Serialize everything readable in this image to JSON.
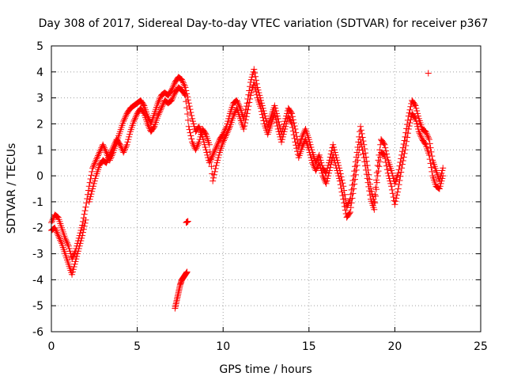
{
  "chart_data": {
    "type": "scatter",
    "title": "Day 308 of 2017, Sidereal Day-to-day VTEC variation (SDTVAR) for receiver p367",
    "xlabel": "GPS time / hours",
    "ylabel": "SDTVAR / TECUs",
    "xlim": [
      0,
      25
    ],
    "ylim": [
      -6,
      5
    ],
    "xticks": [
      "0",
      "5",
      "10",
      "15",
      "20",
      "25"
    ],
    "yticks": [
      "-6",
      "-5",
      "-4",
      "-3",
      "-2",
      "-1",
      "0",
      "1",
      "2",
      "3",
      "4",
      "5"
    ],
    "grid": true,
    "legend": "none",
    "marker": "+",
    "color": "#ff0000",
    "series": [
      {
        "name": "main-trace",
        "points": [
          [
            0.0,
            -1.8
          ],
          [
            0.2,
            -1.5
          ],
          [
            0.4,
            -1.6
          ],
          [
            0.6,
            -2.0
          ],
          [
            0.8,
            -2.4
          ],
          [
            1.0,
            -2.7
          ],
          [
            1.2,
            -3.2
          ],
          [
            1.4,
            -2.9
          ],
          [
            1.6,
            -2.4
          ],
          [
            1.8,
            -1.9
          ],
          [
            2.0,
            -1.2
          ],
          [
            2.2,
            -0.4
          ],
          [
            2.4,
            0.3
          ],
          [
            2.6,
            0.6
          ],
          [
            2.8,
            0.9
          ],
          [
            3.0,
            1.2
          ],
          [
            3.2,
            0.9
          ],
          [
            3.4,
            0.6
          ],
          [
            3.6,
            0.9
          ],
          [
            3.8,
            1.3
          ],
          [
            4.0,
            1.7
          ],
          [
            4.2,
            2.1
          ],
          [
            4.4,
            2.4
          ],
          [
            4.6,
            2.6
          ],
          [
            4.8,
            2.7
          ],
          [
            5.0,
            2.8
          ],
          [
            5.2,
            2.9
          ],
          [
            5.4,
            2.7
          ],
          [
            5.6,
            2.3
          ],
          [
            5.8,
            2.0
          ],
          [
            6.0,
            2.4
          ],
          [
            6.2,
            2.8
          ],
          [
            6.4,
            3.1
          ],
          [
            6.6,
            3.2
          ],
          [
            6.8,
            3.1
          ],
          [
            7.0,
            3.3
          ],
          [
            7.2,
            3.6
          ],
          [
            7.4,
            3.8
          ],
          [
            7.6,
            3.7
          ],
          [
            7.8,
            3.4
          ],
          [
            8.0,
            2.8
          ],
          [
            8.2,
            2.2
          ],
          [
            8.4,
            1.7
          ],
          [
            8.6,
            1.9
          ],
          [
            8.8,
            1.5
          ],
          [
            9.0,
            1.0
          ],
          [
            9.2,
            0.5
          ],
          [
            9.4,
            0.8
          ],
          [
            9.6,
            1.1
          ],
          [
            9.8,
            1.4
          ],
          [
            10.0,
            1.6
          ],
          [
            10.2,
            1.9
          ],
          [
            10.4,
            2.4
          ],
          [
            10.6,
            2.8
          ],
          [
            10.8,
            2.9
          ],
          [
            11.0,
            2.6
          ],
          [
            11.2,
            2.2
          ],
          [
            11.4,
            2.8
          ],
          [
            11.6,
            3.6
          ],
          [
            11.8,
            4.1
          ],
          [
            12.0,
            3.4
          ],
          [
            12.2,
            2.9
          ],
          [
            12.4,
            2.4
          ],
          [
            12.6,
            1.9
          ],
          [
            12.8,
            2.3
          ],
          [
            13.0,
            2.7
          ],
          [
            13.2,
            2.2
          ],
          [
            13.4,
            1.6
          ],
          [
            13.6,
            2.1
          ],
          [
            13.8,
            2.6
          ],
          [
            14.0,
            2.4
          ],
          [
            14.2,
            1.8
          ],
          [
            14.4,
            1.1
          ],
          [
            14.6,
            1.5
          ],
          [
            14.8,
            1.8
          ],
          [
            15.0,
            1.4
          ],
          [
            15.2,
            0.9
          ],
          [
            15.4,
            0.5
          ],
          [
            15.6,
            0.8
          ],
          [
            15.8,
            0.3
          ],
          [
            16.0,
            0.1
          ],
          [
            16.2,
            0.6
          ],
          [
            16.4,
            1.2
          ],
          [
            16.6,
            0.7
          ],
          [
            16.8,
            0.2
          ],
          [
            17.0,
            -0.4
          ],
          [
            17.2,
            -1.2
          ],
          [
            17.4,
            -0.9
          ],
          [
            17.6,
            0.0
          ],
          [
            17.8,
            0.9
          ],
          [
            18.0,
            1.9
          ],
          [
            18.2,
            1.2
          ],
          [
            18.4,
            0.4
          ],
          [
            18.6,
            -0.5
          ],
          [
            18.8,
            -1.0
          ],
          [
            19.0,
            0.4
          ],
          [
            19.2,
            1.4
          ],
          [
            19.4,
            1.2
          ],
          [
            19.6,
            0.6
          ],
          [
            19.8,
            0.2
          ],
          [
            20.0,
            -0.3
          ],
          [
            20.2,
            0.1
          ],
          [
            20.4,
            0.8
          ],
          [
            20.6,
            1.5
          ],
          [
            20.8,
            2.3
          ],
          [
            21.0,
            2.9
          ],
          [
            21.2,
            2.7
          ],
          [
            21.4,
            2.2
          ],
          [
            21.6,
            1.8
          ],
          [
            21.8,
            1.7
          ],
          [
            22.0,
            1.4
          ],
          [
            22.2,
            0.6
          ],
          [
            22.4,
            0.2
          ],
          [
            22.6,
            -0.2
          ],
          [
            22.8,
            0.3
          ]
        ]
      },
      {
        "name": "lower-branch",
        "points": [
          [
            2.2,
            -1.0
          ],
          [
            2.4,
            -0.5
          ],
          [
            2.6,
            0.0
          ],
          [
            2.8,
            0.4
          ],
          [
            3.0,
            0.6
          ],
          [
            3.2,
            0.5
          ],
          [
            3.4,
            0.8
          ],
          [
            3.6,
            1.1
          ],
          [
            3.8,
            1.4
          ],
          [
            4.0,
            1.2
          ],
          [
            4.2,
            0.9
          ],
          [
            4.4,
            1.2
          ],
          [
            4.6,
            1.7
          ],
          [
            4.8,
            2.1
          ],
          [
            5.0,
            2.4
          ],
          [
            5.2,
            2.6
          ],
          [
            5.4,
            2.4
          ],
          [
            5.6,
            2.0
          ],
          [
            5.8,
            1.7
          ],
          [
            6.0,
            1.9
          ],
          [
            6.2,
            2.3
          ],
          [
            6.4,
            2.6
          ],
          [
            6.6,
            2.9
          ],
          [
            6.8,
            2.8
          ],
          [
            7.0,
            2.9
          ],
          [
            7.2,
            3.2
          ],
          [
            7.4,
            3.4
          ],
          [
            7.6,
            3.3
          ],
          [
            7.8,
            3.1
          ],
          [
            8.0,
            1.9
          ],
          [
            8.2,
            1.3
          ],
          [
            8.4,
            1.0
          ],
          [
            8.6,
            1.3
          ],
          [
            8.8,
            1.8
          ],
          [
            9.0,
            1.6
          ],
          [
            9.2,
            1.2
          ],
          [
            9.4,
            -0.2
          ],
          [
            9.6,
            0.4
          ],
          [
            9.8,
            0.9
          ],
          [
            10.0,
            1.3
          ],
          [
            10.2,
            1.6
          ],
          [
            10.4,
            1.9
          ],
          [
            10.6,
            2.3
          ],
          [
            10.8,
            2.6
          ],
          [
            11.0,
            2.2
          ],
          [
            11.2,
            1.8
          ],
          [
            11.4,
            2.4
          ],
          [
            11.6,
            3.1
          ],
          [
            11.8,
            3.6
          ],
          [
            12.0,
            3.0
          ],
          [
            12.2,
            2.6
          ],
          [
            12.4,
            2.0
          ],
          [
            12.6,
            1.6
          ],
          [
            12.8,
            2.0
          ],
          [
            13.0,
            2.4
          ],
          [
            13.2,
            1.8
          ],
          [
            13.4,
            1.3
          ],
          [
            13.6,
            1.8
          ],
          [
            13.8,
            2.3
          ],
          [
            14.0,
            2.0
          ],
          [
            14.2,
            1.3
          ],
          [
            14.4,
            0.7
          ],
          [
            14.6,
            1.1
          ],
          [
            14.8,
            1.4
          ],
          [
            15.0,
            1.0
          ],
          [
            15.2,
            0.5
          ],
          [
            15.4,
            0.2
          ],
          [
            15.6,
            0.5
          ],
          [
            15.8,
            0.0
          ],
          [
            16.0,
            -0.3
          ],
          [
            16.2,
            0.2
          ],
          [
            16.4,
            0.8
          ],
          [
            16.6,
            0.3
          ],
          [
            16.8,
            -0.2
          ],
          [
            17.0,
            -0.9
          ],
          [
            17.2,
            -1.6
          ],
          [
            17.4,
            -1.4
          ],
          [
            17.6,
            -0.5
          ],
          [
            17.8,
            0.4
          ],
          [
            18.0,
            1.4
          ],
          [
            18.2,
            0.7
          ],
          [
            18.4,
            -0.1
          ],
          [
            18.6,
            -0.9
          ],
          [
            18.8,
            -1.3
          ],
          [
            19.0,
            0.0
          ],
          [
            19.2,
            0.9
          ],
          [
            19.4,
            0.8
          ],
          [
            19.6,
            0.1
          ],
          [
            19.8,
            -0.4
          ],
          [
            20.0,
            -1.1
          ],
          [
            20.2,
            -0.5
          ],
          [
            20.4,
            0.3
          ],
          [
            20.6,
            1.0
          ],
          [
            20.8,
            1.8
          ],
          [
            21.0,
            2.4
          ],
          [
            21.2,
            2.2
          ],
          [
            21.4,
            1.7
          ],
          [
            21.6,
            1.4
          ],
          [
            21.8,
            1.2
          ],
          [
            22.0,
            0.8
          ],
          [
            22.2,
            0.0
          ],
          [
            22.4,
            -0.4
          ],
          [
            22.6,
            -0.5
          ],
          [
            22.8,
            0.0
          ]
        ]
      },
      {
        "name": "early-dip",
        "points": [
          [
            0.0,
            -2.1
          ],
          [
            0.2,
            -2.0
          ],
          [
            0.4,
            -2.3
          ],
          [
            0.6,
            -2.6
          ],
          [
            0.8,
            -3.0
          ],
          [
            1.0,
            -3.4
          ],
          [
            1.2,
            -3.8
          ],
          [
            1.4,
            -3.3
          ],
          [
            1.6,
            -2.8
          ],
          [
            1.8,
            -2.3
          ],
          [
            2.0,
            -1.7
          ]
        ]
      },
      {
        "name": "outlier-cluster",
        "points": [
          [
            7.2,
            -5.1
          ],
          [
            7.3,
            -4.8
          ],
          [
            7.4,
            -4.5
          ],
          [
            7.5,
            -4.2
          ],
          [
            7.6,
            -4.0
          ],
          [
            7.7,
            -3.9
          ],
          [
            7.8,
            -3.8
          ],
          [
            7.9,
            -3.7
          ],
          [
            7.85,
            -1.8
          ],
          [
            7.95,
            -1.75
          ]
        ]
      },
      {
        "name": "isolated",
        "points": [
          [
            21.95,
            3.95
          ]
        ]
      }
    ]
  }
}
